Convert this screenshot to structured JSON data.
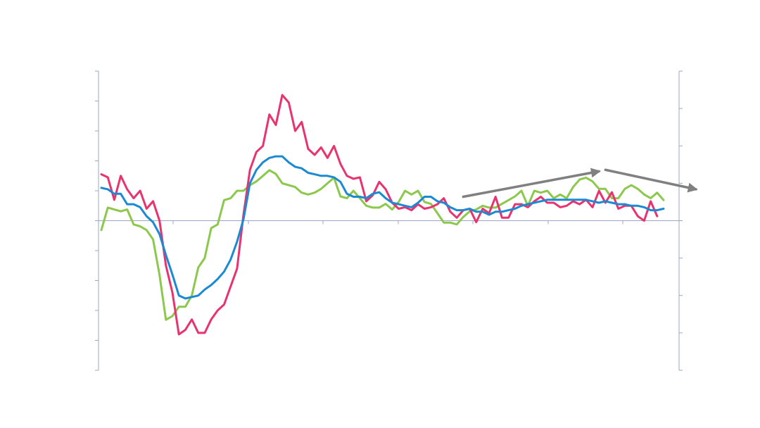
{
  "colors": {
    "background": "#ffffff",
    "axis": "#9aa8c4",
    "series_pink": "#e8336e",
    "series_blue": "#1b8ad3",
    "series_green": "#8cc84b",
    "arrow": "#808080"
  },
  "chart_data": {
    "type": "line",
    "title": "",
    "xlabel": "",
    "ylabel_left": "",
    "ylabel_right": "",
    "grid": false,
    "legend": "none",
    "tick_labels_shown": false,
    "x_range": [
      0,
      90
    ],
    "x_ticks": [
      0,
      12,
      24,
      36,
      48,
      60,
      72,
      84
    ],
    "left_axis": {
      "range": [
        -5,
        5
      ],
      "ticks": [
        -5,
        -4,
        -3,
        -2,
        -1,
        0,
        1,
        2,
        3,
        4,
        5
      ]
    },
    "right_axis": {
      "range": [
        -4,
        4
      ],
      "ticks": [
        -4,
        -3,
        -2,
        -1,
        0,
        1,
        2,
        3,
        4
      ]
    },
    "series": [
      {
        "key": "pink",
        "axis": "left",
        "values": [
          1.55,
          1.45,
          0.7,
          1.5,
          1.05,
          0.75,
          1.0,
          0.4,
          0.65,
          0.0,
          -1.5,
          -2.4,
          -3.8,
          -3.65,
          -3.3,
          -3.75,
          -3.75,
          -3.3,
          -3.0,
          -2.8,
          -2.2,
          -1.6,
          0.2,
          1.7,
          2.3,
          2.5,
          3.55,
          3.2,
          4.2,
          3.95,
          3.0,
          3.3,
          2.4,
          2.2,
          2.45,
          2.1,
          2.5,
          1.9,
          1.5,
          1.4,
          1.45,
          0.65,
          0.85,
          1.3,
          1.05,
          0.6,
          0.4,
          0.45,
          0.35,
          0.55,
          0.4,
          0.45,
          0.55,
          0.75,
          0.3,
          0.1,
          0.35,
          0.4,
          -0.05,
          0.4,
          0.25,
          0.8,
          0.1,
          0.1,
          0.55,
          0.55,
          0.45,
          0.65,
          0.8,
          0.6,
          0.6,
          0.45,
          0.5,
          0.65,
          0.55,
          0.7,
          0.45,
          1.0,
          0.6,
          0.95,
          0.4,
          0.5,
          0.5,
          0.15,
          0.0,
          0.65,
          0.15
        ]
      },
      {
        "key": "blue",
        "axis": "left",
        "values": [
          1.1,
          1.05,
          0.9,
          0.9,
          0.55,
          0.55,
          0.45,
          0.15,
          -0.05,
          -0.45,
          -1.15,
          -1.8,
          -2.5,
          -2.6,
          -2.55,
          -2.5,
          -2.3,
          -2.15,
          -1.95,
          -1.7,
          -1.3,
          -0.7,
          0.05,
          1.25,
          1.7,
          1.95,
          2.1,
          2.15,
          2.15,
          1.95,
          1.8,
          1.75,
          1.6,
          1.55,
          1.5,
          1.5,
          1.45,
          1.3,
          0.9,
          0.8,
          0.8,
          0.75,
          0.9,
          0.95,
          0.75,
          0.6,
          0.55,
          0.5,
          0.45,
          0.6,
          0.8,
          0.8,
          0.65,
          0.6,
          0.45,
          0.35,
          0.35,
          0.4,
          0.3,
          0.3,
          0.2,
          0.3,
          0.3,
          0.35,
          0.4,
          0.5,
          0.55,
          0.6,
          0.65,
          0.7,
          0.7,
          0.7,
          0.7,
          0.7,
          0.7,
          0.7,
          0.65,
          0.6,
          0.65,
          0.6,
          0.55,
          0.55,
          0.5,
          0.5,
          0.45,
          0.35,
          0.35,
          0.4
        ]
      },
      {
        "key": "green",
        "axis": "right",
        "values": [
          -0.25,
          0.35,
          0.3,
          0.25,
          0.3,
          -0.1,
          -0.15,
          -0.25,
          -0.5,
          -1.45,
          -2.65,
          -2.55,
          -2.3,
          -2.3,
          -2.0,
          -1.25,
          -1.0,
          -0.2,
          -0.1,
          0.55,
          0.6,
          0.8,
          0.8,
          0.95,
          1.05,
          1.2,
          1.35,
          1.25,
          1.0,
          0.95,
          0.9,
          0.75,
          0.7,
          0.75,
          0.85,
          1.0,
          1.15,
          0.65,
          0.6,
          0.8,
          0.6,
          0.4,
          0.35,
          0.35,
          0.45,
          0.3,
          0.5,
          0.8,
          0.7,
          0.8,
          0.5,
          0.45,
          0.2,
          -0.05,
          -0.05,
          -0.1,
          0.1,
          0.25,
          0.3,
          0.4,
          0.35,
          0.35,
          0.45,
          0.55,
          0.65,
          0.8,
          0.4,
          0.8,
          0.75,
          0.8,
          0.6,
          0.7,
          0.6,
          0.9,
          1.1,
          1.15,
          1.05,
          0.85,
          0.85,
          0.6,
          0.6,
          0.85,
          0.95,
          0.85,
          0.7,
          0.6,
          0.75,
          0.55
        ]
      }
    ],
    "annotations": [
      {
        "type": "arrow",
        "axis": "left",
        "from": {
          "x": 56,
          "y": 0.8
        },
        "to": {
          "x": 77,
          "y": 1.65
        }
      },
      {
        "type": "arrow",
        "axis": "left",
        "from": {
          "x": 78,
          "y": 1.7
        },
        "to": {
          "x": 92,
          "y": 1.05
        }
      }
    ]
  }
}
